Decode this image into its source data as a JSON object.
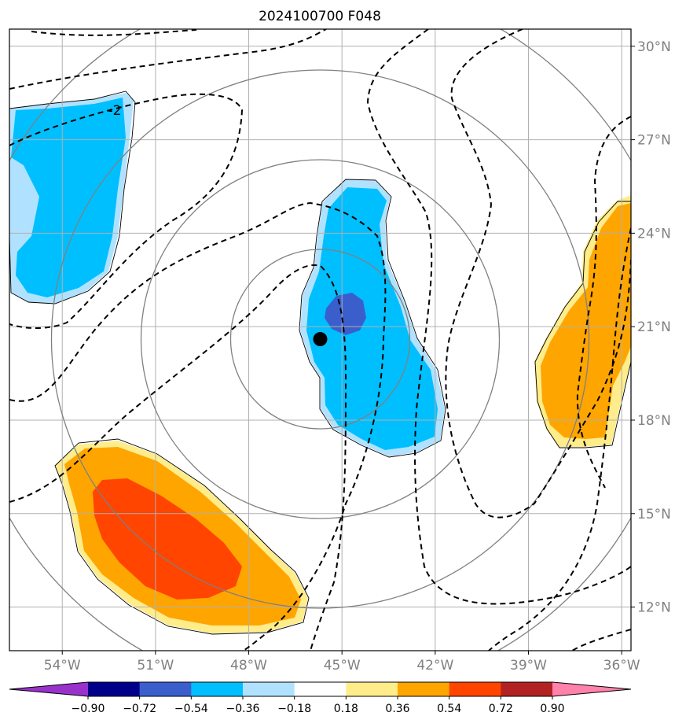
{
  "title": "2024100700 F048",
  "chart_data": {
    "type": "heatmap",
    "title": "2024100700 F048",
    "xlabel": "",
    "ylabel": "",
    "lon_ticks": [
      "54°W",
      "51°W",
      "48°W",
      "45°W",
      "42°W",
      "39°W",
      "36°W"
    ],
    "lon_values": [
      -54,
      -51,
      -48,
      -45,
      -42,
      -39,
      -36
    ],
    "lat_ticks": [
      "30°N",
      "27°N",
      "24°N",
      "21°N",
      "18°N",
      "15°N",
      "12°N"
    ],
    "lat_values": [
      30,
      27,
      24,
      21,
      18,
      15,
      12
    ],
    "xlim": [
      -55.7,
      -35.7
    ],
    "ylim": [
      10.6,
      30.55
    ],
    "grid": true,
    "colorbar": {
      "ticks": [
        "−0.90",
        "−0.72",
        "−0.54",
        "−0.36",
        "−0.18",
        "0.18",
        "0.36",
        "0.54",
        "0.72",
        "0.90"
      ],
      "values": [
        -0.9,
        -0.72,
        -0.54,
        -0.36,
        -0.18,
        0.18,
        0.36,
        0.54,
        0.72,
        0.9
      ],
      "colors": [
        "#9932cc",
        "#00008b",
        "#3a5fcd",
        "#00bfff",
        "#b0e2ff",
        "#ffffff",
        "#ffec8b",
        "#ffa500",
        "#ff4500",
        "#b22222",
        "#ff82ab"
      ],
      "extend": "both"
    },
    "contour_label": "-2",
    "storm_center": {
      "lon": -45.7,
      "lat": 20.6
    },
    "range_rings": {
      "center": {
        "lon": -45.7,
        "lat": 20.6
      },
      "count": 4
    }
  }
}
